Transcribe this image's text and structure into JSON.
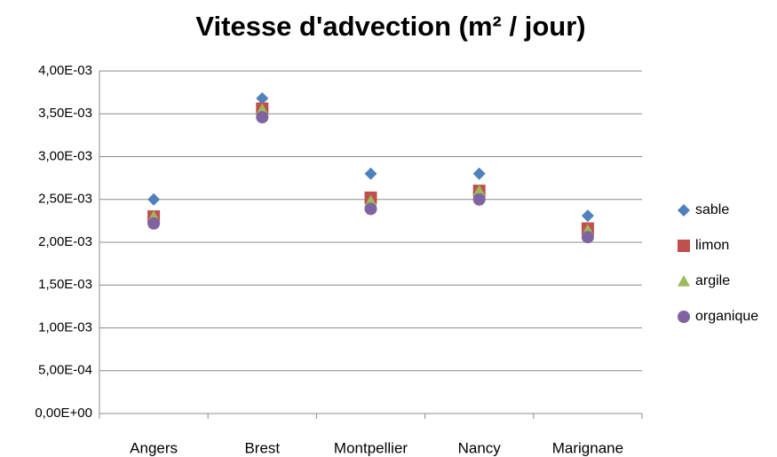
{
  "chart_data": {
    "type": "scatter",
    "title": "Vitesse d'advection (m² / jour)",
    "categories": [
      "Angers",
      "Brest",
      "Montpellier",
      "Nancy",
      "Marignane"
    ],
    "series": [
      {
        "name": "sable",
        "color": "#4f81bd",
        "marker": "diamond",
        "values": [
          0.0025,
          0.00368,
          0.0028,
          0.0028,
          0.00231
        ]
      },
      {
        "name": "limon",
        "color": "#c0504d",
        "marker": "square",
        "values": [
          0.0023,
          0.00356,
          0.00252,
          0.0026,
          0.00216
        ]
      },
      {
        "name": "argile",
        "color": "#9bbb59",
        "marker": "triangle",
        "values": [
          0.0023,
          0.00355,
          0.00248,
          0.0026,
          0.00214
        ]
      },
      {
        "name": "organique",
        "color": "#8064a2",
        "marker": "circle",
        "values": [
          0.00222,
          0.00346,
          0.00239,
          0.0025,
          0.00206
        ]
      }
    ],
    "ylim": [
      0,
      0.004
    ],
    "yticks": [
      {
        "value": 0,
        "label": "0,00E+00"
      },
      {
        "value": 0.0005,
        "label": "5,00E-04"
      },
      {
        "value": 0.001,
        "label": "1,00E-03"
      },
      {
        "value": 0.0015,
        "label": "1,50E-03"
      },
      {
        "value": 0.002,
        "label": "2,00E-03"
      },
      {
        "value": 0.0025,
        "label": "2,50E-03"
      },
      {
        "value": 0.003,
        "label": "3,00E-03"
      },
      {
        "value": 0.0035,
        "label": "3,50E-03"
      },
      {
        "value": 0.004,
        "label": "4,00E-03"
      }
    ],
    "grid": true,
    "legend": "right"
  }
}
